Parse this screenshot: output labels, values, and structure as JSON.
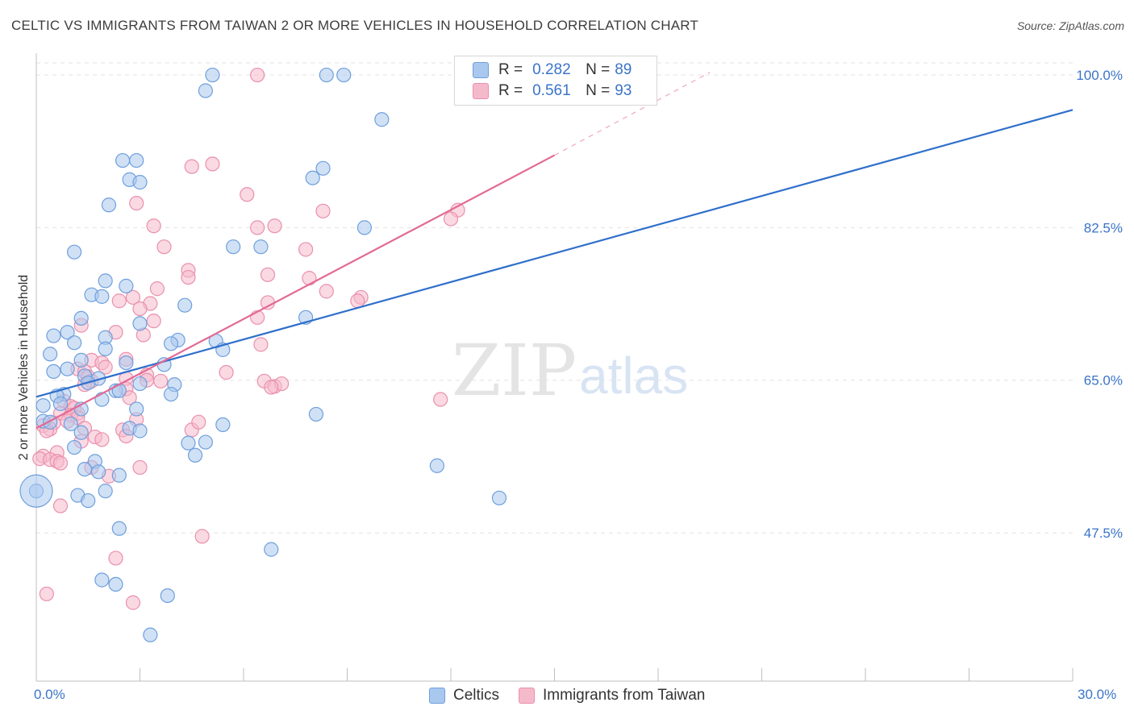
{
  "header": {
    "title": "CELTIC VS IMMIGRANTS FROM TAIWAN 2 OR MORE VEHICLES IN HOUSEHOLD CORRELATION CHART",
    "source": "Source: ZipAtlas.com"
  },
  "legend": {
    "rows": [
      {
        "r_label": "R =",
        "r_value": "0.282",
        "n_label": "N =",
        "n_value": "89"
      },
      {
        "r_label": "R =",
        "r_value": "0.561",
        "n_label": "N =",
        "n_value": "93"
      }
    ]
  },
  "watermark": {
    "zip": "ZIP",
    "atlas": "atlas"
  },
  "colors": {
    "celtic_fill": "#a9c8ef",
    "celtic_stroke": "#6f9fdc",
    "celtic_line": "#2f6fcb",
    "taiwan_fill": "#f5b9cc",
    "taiwan_stroke": "#ea90ad",
    "taiwan_line": "#e26a94",
    "tick_label": "#3a74c8",
    "grid": "#e3e3e3"
  },
  "chart_data": {
    "type": "scatter",
    "title": "CELTIC VS IMMIGRANTS FROM TAIWAN 2 OR MORE VEHICLES IN HOUSEHOLD CORRELATION CHART",
    "xlabel": "",
    "ylabel": "2 or more Vehicles in Household",
    "xlim": [
      0,
      30
    ],
    "ylim": [
      30.5,
      102.5
    ],
    "x_tick_labels": [
      "0.0%",
      "30.0%"
    ],
    "y_ticks": [
      47.5,
      65.0,
      82.5,
      100.0
    ],
    "y_tick_labels": [
      "47.5%",
      "65.0%",
      "82.5%",
      "100.0%"
    ],
    "grid": true,
    "legend_position": "bottom",
    "series": [
      {
        "name": "Celtics",
        "R": 0.282,
        "N": 89,
        "trend": {
          "x": [
            0,
            30
          ],
          "y": [
            63.1,
            96.0
          ]
        },
        "points": [
          [
            5.1,
            100
          ],
          [
            8.4,
            100
          ],
          [
            8.9,
            100
          ],
          [
            4.9,
            98.2
          ],
          [
            10.0,
            94.9
          ],
          [
            2.5,
            90.2
          ],
          [
            2.9,
            90.2
          ],
          [
            8.3,
            89.3
          ],
          [
            8.0,
            88.2
          ],
          [
            2.7,
            88.0
          ],
          [
            3.0,
            87.7
          ],
          [
            2.1,
            85.1
          ],
          [
            9.5,
            82.5
          ],
          [
            5.7,
            80.3
          ],
          [
            6.5,
            80.3
          ],
          [
            1.1,
            79.7
          ],
          [
            2.0,
            76.4
          ],
          [
            2.6,
            75.8
          ],
          [
            1.6,
            74.8
          ],
          [
            1.9,
            74.6
          ],
          [
            4.3,
            73.6
          ],
          [
            7.8,
            72.2
          ],
          [
            1.3,
            72.1
          ],
          [
            3.0,
            71.5
          ],
          [
            0.9,
            70.5
          ],
          [
            0.5,
            70.1
          ],
          [
            2.0,
            69.9
          ],
          [
            4.1,
            69.6
          ],
          [
            3.9,
            69.2
          ],
          [
            5.2,
            69.5
          ],
          [
            1.1,
            69.3
          ],
          [
            2.0,
            68.6
          ],
          [
            5.4,
            68.5
          ],
          [
            0.4,
            68.0
          ],
          [
            1.3,
            67.3
          ],
          [
            2.6,
            67.0
          ],
          [
            3.7,
            66.8
          ],
          [
            0.9,
            66.3
          ],
          [
            0.5,
            66.0
          ],
          [
            1.4,
            65.5
          ],
          [
            1.8,
            65.2
          ],
          [
            1.5,
            64.7
          ],
          [
            4.0,
            64.5
          ],
          [
            3.0,
            64.6
          ],
          [
            2.3,
            63.8
          ],
          [
            2.4,
            63.8
          ],
          [
            3.9,
            63.4
          ],
          [
            0.8,
            63.4
          ],
          [
            0.6,
            63.2
          ],
          [
            1.9,
            62.8
          ],
          [
            0.7,
            62.3
          ],
          [
            0.2,
            62.1
          ],
          [
            1.3,
            61.7
          ],
          [
            2.9,
            61.7
          ],
          [
            8.1,
            61.1
          ],
          [
            0.2,
            60.3
          ],
          [
            0.4,
            60.2
          ],
          [
            1.0,
            60.0
          ],
          [
            5.4,
            59.9
          ],
          [
            2.7,
            59.5
          ],
          [
            3.0,
            59.2
          ],
          [
            1.3,
            59.0
          ],
          [
            1.1,
            57.3
          ],
          [
            4.4,
            57.8
          ],
          [
            4.9,
            57.9
          ],
          [
            4.6,
            56.4
          ],
          [
            1.7,
            55.7
          ],
          [
            11.6,
            55.2
          ],
          [
            1.4,
            54.8
          ],
          [
            1.8,
            54.5
          ],
          [
            2.4,
            54.1
          ],
          [
            2.0,
            52.3
          ],
          [
            0.0,
            52.3
          ],
          [
            1.2,
            51.8
          ],
          [
            13.4,
            51.5
          ],
          [
            1.5,
            51.2
          ],
          [
            2.4,
            48.0
          ],
          [
            6.8,
            45.6
          ],
          [
            1.9,
            42.1
          ],
          [
            2.3,
            41.6
          ],
          [
            3.8,
            40.3
          ],
          [
            3.3,
            35.8
          ]
        ],
        "big_point": [
          0.0,
          52.3
        ]
      },
      {
        "name": "Immigrants from Taiwan",
        "R": 0.561,
        "N": 93,
        "trend": {
          "x": [
            0,
            15
          ],
          "y": [
            59.5,
            90.8
          ]
        },
        "trend_dashed": {
          "x": [
            15,
            19.5
          ],
          "y": [
            90.8,
            100.3
          ]
        },
        "points": [
          [
            6.4,
            100
          ],
          [
            4.5,
            89.5
          ],
          [
            5.1,
            89.8
          ],
          [
            6.1,
            86.3
          ],
          [
            2.9,
            85.3
          ],
          [
            8.3,
            84.4
          ],
          [
            12.2,
            84.5
          ],
          [
            12.0,
            83.5
          ],
          [
            3.4,
            82.7
          ],
          [
            6.4,
            82.5
          ],
          [
            6.9,
            82.7
          ],
          [
            3.7,
            80.3
          ],
          [
            7.8,
            80.0
          ],
          [
            4.4,
            77.6
          ],
          [
            6.7,
            77.1
          ],
          [
            4.4,
            76.8
          ],
          [
            7.9,
            76.7
          ],
          [
            3.5,
            75.5
          ],
          [
            8.4,
            75.2
          ],
          [
            9.4,
            74.5
          ],
          [
            2.4,
            74.1
          ],
          [
            2.8,
            74.5
          ],
          [
            9.3,
            74.1
          ],
          [
            6.7,
            73.9
          ],
          [
            3.3,
            73.8
          ],
          [
            3.0,
            73.2
          ],
          [
            6.4,
            72.2
          ],
          [
            1.3,
            71.3
          ],
          [
            3.4,
            71.8
          ],
          [
            2.3,
            70.5
          ],
          [
            3.1,
            70.2
          ],
          [
            6.5,
            69.1
          ],
          [
            2.6,
            67.4
          ],
          [
            1.6,
            67.3
          ],
          [
            1.9,
            67.0
          ],
          [
            2.0,
            66.5
          ],
          [
            1.2,
            66.3
          ],
          [
            1.4,
            66.0
          ],
          [
            3.2,
            65.6
          ],
          [
            5.5,
            65.9
          ],
          [
            1.5,
            65.4
          ],
          [
            2.6,
            65.2
          ],
          [
            3.2,
            65.0
          ],
          [
            1.6,
            64.9
          ],
          [
            3.6,
            64.9
          ],
          [
            6.6,
            64.9
          ],
          [
            6.9,
            64.3
          ],
          [
            7.1,
            64.6
          ],
          [
            6.8,
            64.2
          ],
          [
            1.4,
            64.5
          ],
          [
            2.6,
            64.0
          ],
          [
            2.7,
            63.0
          ],
          [
            11.7,
            62.8
          ],
          [
            0.8,
            62.6
          ],
          [
            1.0,
            62.0
          ],
          [
            1.1,
            61.8
          ],
          [
            1.2,
            61.2
          ],
          [
            0.7,
            61.2
          ],
          [
            1.0,
            61.0
          ],
          [
            4.5,
            59.3
          ],
          [
            1.2,
            60.7
          ],
          [
            2.9,
            60.5
          ],
          [
            0.9,
            60.3
          ],
          [
            4.7,
            60.2
          ],
          [
            0.5,
            60.1
          ],
          [
            0.2,
            59.8
          ],
          [
            1.4,
            59.5
          ],
          [
            0.4,
            59.4
          ],
          [
            0.3,
            59.2
          ],
          [
            2.5,
            59.3
          ],
          [
            1.7,
            58.5
          ],
          [
            2.6,
            58.6
          ],
          [
            1.9,
            58.2
          ],
          [
            1.3,
            58.0
          ],
          [
            0.6,
            56.7
          ],
          [
            0.2,
            56.3
          ],
          [
            0.1,
            56.0
          ],
          [
            0.4,
            55.9
          ],
          [
            0.6,
            55.7
          ],
          [
            0.7,
            55.5
          ],
          [
            1.6,
            55.0
          ],
          [
            2.1,
            54.0
          ],
          [
            3.0,
            55.0
          ],
          [
            0.7,
            50.6
          ],
          [
            4.8,
            47.1
          ],
          [
            2.3,
            44.6
          ],
          [
            0.3,
            40.5
          ],
          [
            2.8,
            39.5
          ]
        ]
      }
    ]
  },
  "bottom_legend": [
    {
      "label": "Celtics"
    },
    {
      "label": "Immigrants from Taiwan"
    }
  ]
}
